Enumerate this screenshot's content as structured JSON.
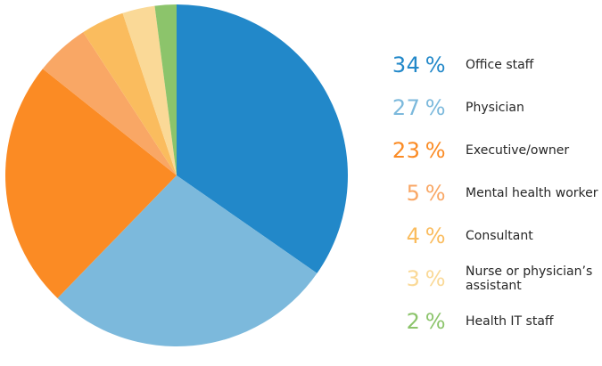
{
  "chart_data": {
    "type": "pie",
    "title": "",
    "categories": [
      "Office staff",
      "Physician",
      "Executive/owner",
      "Mental health worker",
      "Consultant",
      "Nurse or physician’s assistant",
      "Health IT staff"
    ],
    "values": [
      34,
      27,
      23,
      5,
      4,
      3,
      2
    ],
    "unit": "%",
    "colors": [
      "#2288c9",
      "#7cb9dc",
      "#fb8b24",
      "#f9a765",
      "#fabc5e",
      "#fad997",
      "#8cc46b"
    ],
    "start_angle_deg": 0,
    "direction": "clockwise",
    "legend_position": "right",
    "grid": false
  },
  "legend": {
    "rows": [
      {
        "value_display": "34 %",
        "label": "Office staff",
        "color": "#2288c9"
      },
      {
        "value_display": "27 %",
        "label": "Physician",
        "color": "#7cb9dc"
      },
      {
        "value_display": "23 %",
        "label": "Executive/owner",
        "color": "#fb8b24"
      },
      {
        "value_display": "5 %",
        "label": "Mental health worker",
        "color": "#f9a765"
      },
      {
        "value_display": "4 %",
        "label": "Consultant",
        "color": "#fabc5e"
      },
      {
        "value_display": "3 %",
        "label": "Nurse or physician’s assistant",
        "color": "#fad997"
      },
      {
        "value_display": "2 %",
        "label": "Health IT staff",
        "color": "#8cc46b"
      }
    ]
  }
}
